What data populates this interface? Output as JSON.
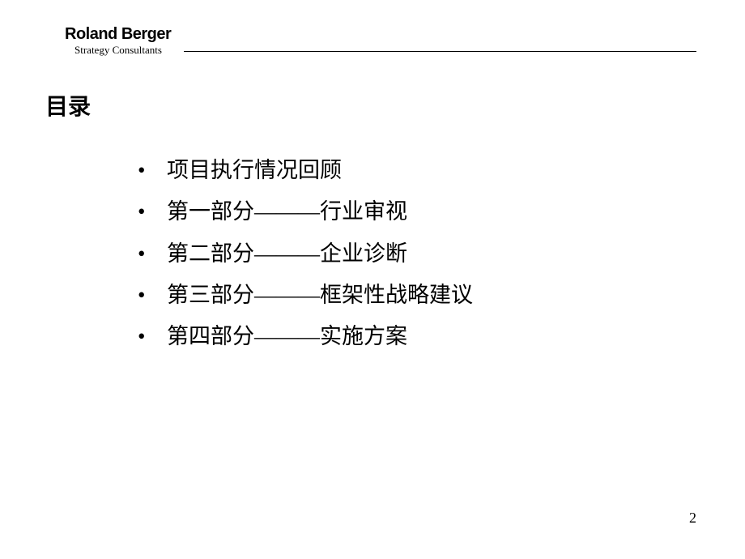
{
  "logo": {
    "main": "Roland Berger",
    "sub": "Strategy Consultants"
  },
  "title": "目录",
  "toc": {
    "items": [
      "项目执行情况回顾",
      "第一部分———行业审视",
      "第二部分———企业诊断",
      "第三部分———框架性战略建议",
      "第四部分———实施方案"
    ]
  },
  "page_number": "2",
  "colors": {
    "background": "#ffffff",
    "text": "#000000",
    "line": "#000000"
  }
}
